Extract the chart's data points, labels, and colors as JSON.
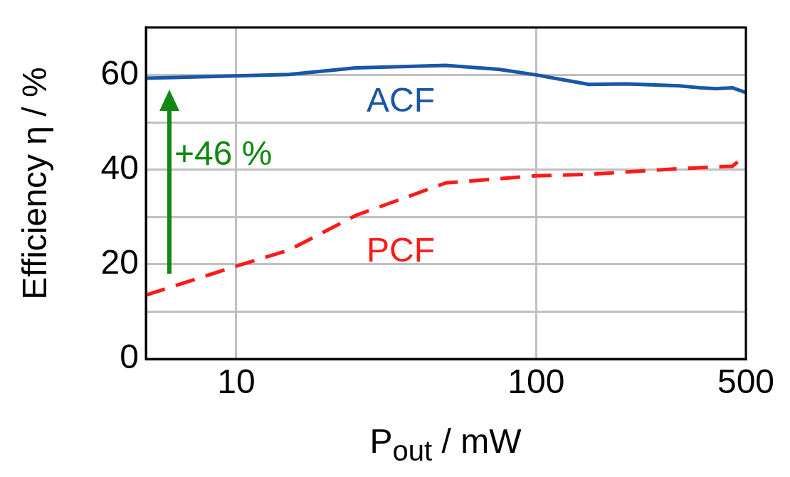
{
  "chart_data": {
    "type": "line",
    "xlabel": "P$_{out}$ / mW",
    "ylabel": "Efficiency η / %",
    "log": "x",
    "xlim": [
      5,
      500
    ],
    "xticks": [
      10,
      100,
      500
    ],
    "ylim": [
      0,
      70
    ],
    "yticks": [
      0,
      {
        "value": 10,
        "label": null
      },
      20,
      {
        "value": 30,
        "label": null
      },
      40,
      {
        "value": 50,
        "label": null
      },
      60,
      {
        "value": 70,
        "label": null
      }
    ],
    "grid": true,
    "legend": false,
    "marker": "none",
    "series": [
      {
        "name": "ACF",
        "color": "#1a56a8",
        "line_style": "solid",
        "x": [
          5,
          10,
          15,
          25,
          50,
          75,
          100,
          150,
          200,
          300,
          350,
          400,
          450,
          500
        ],
        "values": [
          59.3,
          59.8,
          60.1,
          61.5,
          62,
          61.2,
          60,
          58,
          58.1,
          57.7,
          57.3,
          57.1,
          57.3,
          56.3
        ]
      },
      {
        "name": "PCF",
        "color": "#ff1a1a",
        "line_style": "dashed",
        "x": [
          5,
          10,
          15,
          25,
          50,
          100,
          150,
          300,
          400,
          450,
          500
        ],
        "values": [
          13.5,
          19.6,
          23,
          30.3,
          37.2,
          38.7,
          39,
          40.2,
          40.6,
          40.7,
          43
        ]
      }
    ],
    "annotations": [
      "+46 %"
    ]
  }
}
